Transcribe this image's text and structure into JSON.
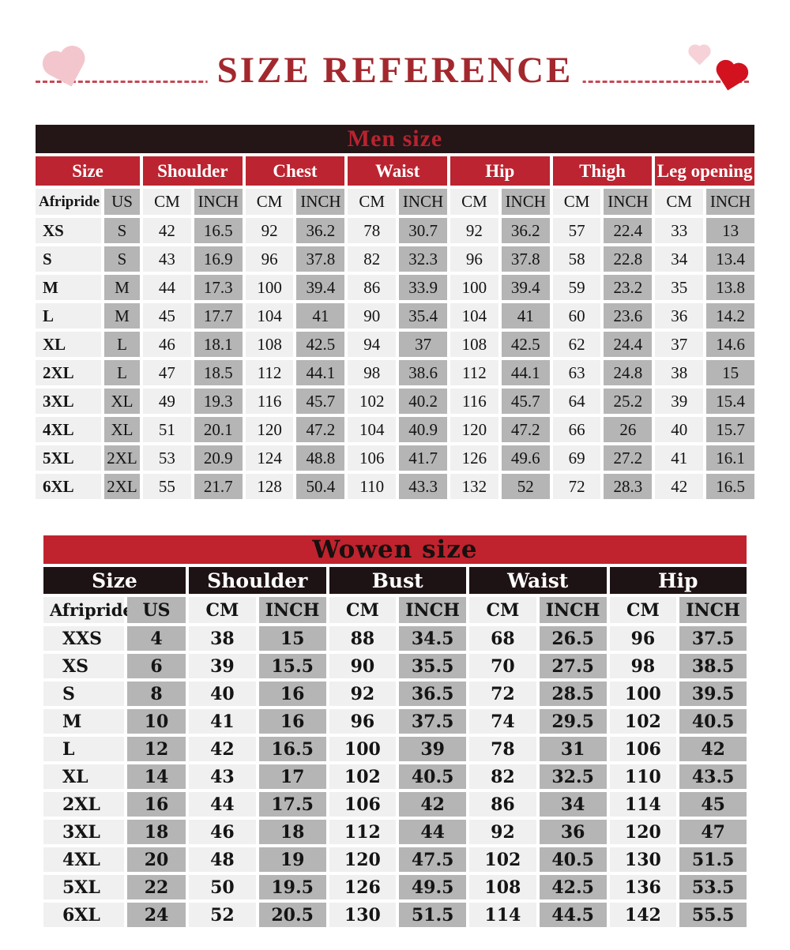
{
  "page": {
    "title": "SIZE REFERENCE"
  },
  "colors": {
    "title_red": "#a3282e",
    "men_bar_bg": "#241517",
    "men_bar_text": "#b7242f",
    "men_group_red": "#bb2430",
    "women_bar_red": "#c0232e",
    "women_group_black": "#1e1314",
    "cell_light": "#f1f0f0",
    "cell_gray": "#b6b5b5",
    "heart_pink": "#f3c6cd",
    "heart_red": "#d2121f",
    "dash_line": "#c64853"
  },
  "decorations": [
    "pink-heart-icon-left",
    "pink-heart-icon-right",
    "red-heart-icon-right"
  ],
  "men_table": {
    "title": "Men size",
    "groups": [
      "Size",
      "Shoulder",
      "Chest",
      "Waist",
      "Hip",
      "Thigh",
      "Leg opening"
    ],
    "subheaders": [
      "Afripride",
      "US",
      "CM",
      "INCH",
      "CM",
      "INCH",
      "CM",
      "INCH",
      "CM",
      "INCH",
      "CM",
      "INCH",
      "CM",
      "INCH"
    ],
    "rows": [
      [
        "XS",
        "S",
        "42",
        "16.5",
        "92",
        "36.2",
        "78",
        "30.7",
        "92",
        "36.2",
        "57",
        "22.4",
        "33",
        "13"
      ],
      [
        "S",
        "S",
        "43",
        "16.9",
        "96",
        "37.8",
        "82",
        "32.3",
        "96",
        "37.8",
        "58",
        "22.8",
        "34",
        "13.4"
      ],
      [
        "M",
        "M",
        "44",
        "17.3",
        "100",
        "39.4",
        "86",
        "33.9",
        "100",
        "39.4",
        "59",
        "23.2",
        "35",
        "13.8"
      ],
      [
        "L",
        "M",
        "45",
        "17.7",
        "104",
        "41",
        "90",
        "35.4",
        "104",
        "41",
        "60",
        "23.6",
        "36",
        "14.2"
      ],
      [
        "XL",
        "L",
        "46",
        "18.1",
        "108",
        "42.5",
        "94",
        "37",
        "108",
        "42.5",
        "62",
        "24.4",
        "37",
        "14.6"
      ],
      [
        "2XL",
        "L",
        "47",
        "18.5",
        "112",
        "44.1",
        "98",
        "38.6",
        "112",
        "44.1",
        "63",
        "24.8",
        "38",
        "15"
      ],
      [
        "3XL",
        "XL",
        "49",
        "19.3",
        "116",
        "45.7",
        "102",
        "40.2",
        "116",
        "45.7",
        "64",
        "25.2",
        "39",
        "15.4"
      ],
      [
        "4XL",
        "XL",
        "51",
        "20.1",
        "120",
        "47.2",
        "104",
        "40.9",
        "120",
        "47.2",
        "66",
        "26",
        "40",
        "15.7"
      ],
      [
        "5XL",
        "2XL",
        "53",
        "20.9",
        "124",
        "48.8",
        "106",
        "41.7",
        "126",
        "49.6",
        "69",
        "27.2",
        "41",
        "16.1"
      ],
      [
        "6XL",
        "2XL",
        "55",
        "21.7",
        "128",
        "50.4",
        "110",
        "43.3",
        "132",
        "52",
        "72",
        "28.3",
        "42",
        "16.5"
      ]
    ]
  },
  "women_table": {
    "title": "Wowen size",
    "groups": [
      "Size",
      "Shoulder",
      "Bust",
      "Waist",
      "Hip"
    ],
    "subheaders": [
      "Afripride",
      "US",
      "CM",
      "INCH",
      "CM",
      "INCH",
      "CM",
      "INCH",
      "CM",
      "INCH"
    ],
    "rows": [
      [
        "XXS",
        "4",
        "38",
        "15",
        "88",
        "34.5",
        "68",
        "26.5",
        "96",
        "37.5"
      ],
      [
        "XS",
        "6",
        "39",
        "15.5",
        "90",
        "35.5",
        "70",
        "27.5",
        "98",
        "38.5"
      ],
      [
        "S",
        "8",
        "40",
        "16",
        "92",
        "36.5",
        "72",
        "28.5",
        "100",
        "39.5"
      ],
      [
        "M",
        "10",
        "41",
        "16",
        "96",
        "37.5",
        "74",
        "29.5",
        "102",
        "40.5"
      ],
      [
        "L",
        "12",
        "42",
        "16.5",
        "100",
        "39",
        "78",
        "31",
        "106",
        "42"
      ],
      [
        "XL",
        "14",
        "43",
        "17",
        "102",
        "40.5",
        "82",
        "32.5",
        "110",
        "43.5"
      ],
      [
        "2XL",
        "16",
        "44",
        "17.5",
        "106",
        "42",
        "86",
        "34",
        "114",
        "45"
      ],
      [
        "3XL",
        "18",
        "46",
        "18",
        "112",
        "44",
        "92",
        "36",
        "120",
        "47"
      ],
      [
        "4XL",
        "20",
        "48",
        "19",
        "120",
        "47.5",
        "102",
        "40.5",
        "130",
        "51.5"
      ],
      [
        "5XL",
        "22",
        "50",
        "19.5",
        "126",
        "49.5",
        "108",
        "42.5",
        "136",
        "53.5"
      ],
      [
        "6XL",
        "24",
        "52",
        "20.5",
        "130",
        "51.5",
        "114",
        "44.5",
        "142",
        "55.5"
      ]
    ]
  }
}
